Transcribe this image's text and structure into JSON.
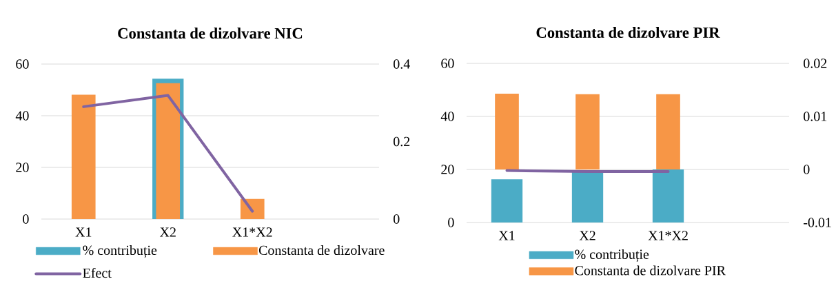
{
  "chart_data": [
    {
      "type": "bar",
      "title": "Constanta de dizolvare NIC",
      "categories": [
        "X1",
        "X2",
        "X1*X2",
        null
      ],
      "ylim": [
        0,
        60
      ],
      "yticks": [
        0,
        20,
        40,
        60
      ],
      "y2lim": [
        0,
        0.4
      ],
      "y2ticks": [
        0,
        0.2,
        0.4
      ],
      "grid": "y",
      "legend": "bottom",
      "series": [
        {
          "name": "% contribuție",
          "color": "#4bacc6",
          "values": [
            null,
            54.3,
            null,
            null
          ]
        },
        {
          "name": "Constanta de dizolvare",
          "color": "#f79646",
          "axis": "y2",
          "values": [
            0.321,
            0.351,
            0.052,
            null
          ]
        },
        {
          "name": "Efect",
          "type": "line",
          "color": "#8064a2",
          "axis": "y2",
          "values": [
            0.29,
            0.319,
            0.02,
            null
          ]
        }
      ]
    },
    {
      "type": "bar",
      "title": "Constanta de dizolvare PIR",
      "categories": [
        "X1",
        "X2",
        "X1*X2",
        null
      ],
      "ylim": [
        0,
        60
      ],
      "yticks": [
        0,
        20,
        40,
        60
      ],
      "y2lim": [
        -0.01,
        0.02
      ],
      "y2ticks": [
        -0.01,
        0,
        0.01,
        0.02
      ],
      "grid": "y",
      "legend": "bottom",
      "series": [
        {
          "name": "% contribuție",
          "color": "#4bacc6",
          "values": [
            16.3,
            19.0,
            20.0,
            null
          ]
        },
        {
          "name": "Constanta de dizolvare PIR",
          "color": "#f79646",
          "axis": "y2",
          "values": [
            0.0143,
            0.0142,
            0.0142,
            null
          ]
        },
        {
          "type": "line",
          "color": "#8064a2",
          "axis": "y2",
          "values": [
            -0.0002,
            -0.0004,
            -0.0004,
            null
          ]
        }
      ]
    }
  ]
}
